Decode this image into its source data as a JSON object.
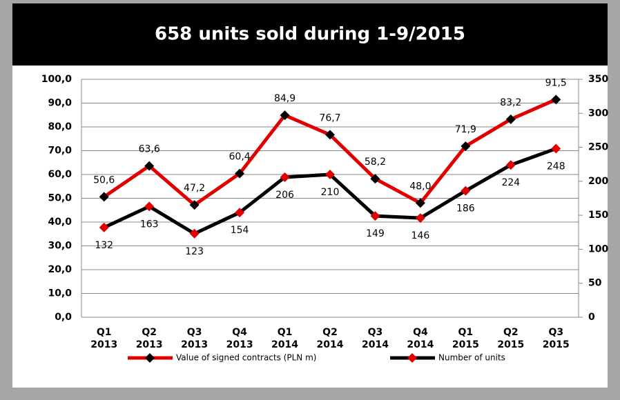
{
  "chart_data": {
    "type": "line",
    "title": "658 units sold during 1-9/2015",
    "categories": [
      "Q1 2013",
      "Q2 2013",
      "Q3 2013",
      "Q4 2013",
      "Q1 2014",
      "Q2 2014",
      "Q3 2014",
      "Q4 2014",
      "Q1 2015",
      "Q2 2015",
      "Q3 2015"
    ],
    "series": [
      {
        "name": "Value of signed contracts (PLN m)",
        "color": "#e00000",
        "marker_color": "#000000",
        "values": [
          50.6,
          63.6,
          47.2,
          60.4,
          84.9,
          76.7,
          58.2,
          48.0,
          71.9,
          83.2,
          91.5
        ],
        "value_labels": [
          "50,6",
          "63,6",
          "47,2",
          "60,4",
          "84,9",
          "76,7",
          "58,2",
          "48,0",
          "71,9",
          "83,2",
          "91,5"
        ]
      },
      {
        "name": "Number of units",
        "color": "#000000",
        "marker_color": "#e00000",
        "axis": "y2",
        "values": [
          132,
          163,
          123,
          154,
          206,
          210,
          149,
          146,
          186,
          224,
          248
        ]
      }
    ],
    "ylim": [
      0,
      100
    ],
    "yticks": [
      {
        "value": 0,
        "label": "0,0"
      },
      {
        "value": 10,
        "label": "10,0"
      },
      {
        "value": 20,
        "label": "20,0"
      },
      {
        "value": 30,
        "label": "30,0"
      },
      {
        "value": 40,
        "label": "40,0"
      },
      {
        "value": 50,
        "label": "50,0"
      },
      {
        "value": 60,
        "label": "60,0"
      },
      {
        "value": 70,
        "label": "70,0"
      },
      {
        "value": 80,
        "label": "80,0"
      },
      {
        "value": 90,
        "label": "90,0"
      },
      {
        "value": 100,
        "label": "100,0"
      }
    ],
    "y2lim": [
      0,
      350
    ],
    "y2ticks": [
      0,
      50,
      100,
      150,
      200,
      250,
      300,
      350
    ],
    "grid": true,
    "legend": "bottom"
  }
}
